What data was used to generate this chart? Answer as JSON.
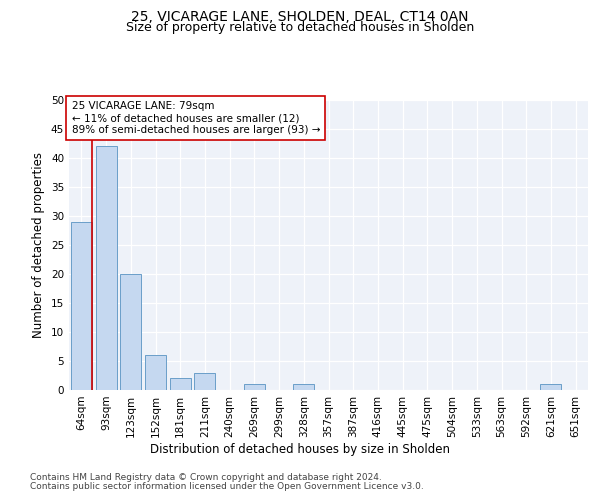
{
  "title_line1": "25, VICARAGE LANE, SHOLDEN, DEAL, CT14 0AN",
  "title_line2": "Size of property relative to detached houses in Sholden",
  "xlabel": "Distribution of detached houses by size in Sholden",
  "ylabel": "Number of detached properties",
  "categories": [
    "64sqm",
    "93sqm",
    "123sqm",
    "152sqm",
    "181sqm",
    "211sqm",
    "240sqm",
    "269sqm",
    "299sqm",
    "328sqm",
    "357sqm",
    "387sqm",
    "416sqm",
    "445sqm",
    "475sqm",
    "504sqm",
    "533sqm",
    "563sqm",
    "592sqm",
    "621sqm",
    "651sqm"
  ],
  "values": [
    29,
    42,
    20,
    6,
    2,
    3,
    0,
    1,
    0,
    1,
    0,
    0,
    0,
    0,
    0,
    0,
    0,
    0,
    0,
    1,
    0
  ],
  "bar_color": "#c5d8f0",
  "bar_edge_color": "#6a9ec9",
  "vline_color": "#cc0000",
  "annotation_box_text": "25 VICARAGE LANE: 79sqm\n← 11% of detached houses are smaller (12)\n89% of semi-detached houses are larger (93) →",
  "ylim": [
    0,
    50
  ],
  "yticks": [
    0,
    5,
    10,
    15,
    20,
    25,
    30,
    35,
    40,
    45,
    50
  ],
  "background_color": "#eef2f9",
  "footer_line1": "Contains HM Land Registry data © Crown copyright and database right 2024.",
  "footer_line2": "Contains public sector information licensed under the Open Government Licence v3.0.",
  "title_fontsize": 10,
  "subtitle_fontsize": 9,
  "axis_label_fontsize": 8.5,
  "tick_fontsize": 7.5,
  "annotation_fontsize": 7.5,
  "footer_fontsize": 6.5
}
